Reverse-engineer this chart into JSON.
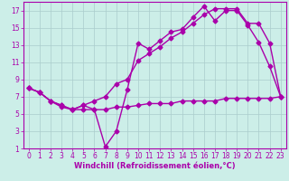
{
  "background_color": "#cceee8",
  "grid_color": "#aacccc",
  "line_color": "#aa00aa",
  "marker": "D",
  "marker_size": 2.5,
  "line_width": 1.0,
  "xlim": [
    -0.5,
    23.5
  ],
  "ylim": [
    1,
    18
  ],
  "xticks": [
    0,
    1,
    2,
    3,
    4,
    5,
    6,
    7,
    8,
    9,
    10,
    11,
    12,
    13,
    14,
    15,
    16,
    17,
    18,
    19,
    20,
    21,
    22,
    23
  ],
  "yticks": [
    1,
    3,
    5,
    7,
    9,
    11,
    13,
    15,
    17
  ],
  "xlabel": "Windchill (Refroidissement éolien,°C)",
  "series": [
    {
      "x": [
        0,
        1,
        2,
        3,
        4,
        5,
        6,
        7,
        8,
        9,
        10,
        11,
        12,
        13,
        14,
        15,
        16,
        17,
        18,
        19,
        20,
        21,
        22,
        23
      ],
      "y": [
        8,
        7.5,
        6.5,
        6.0,
        5.5,
        6.0,
        5.5,
        1.2,
        3.0,
        7.8,
        13.2,
        12.5,
        13.5,
        14.5,
        14.8,
        16.2,
        17.5,
        15.8,
        17.0,
        17.0,
        15.3,
        13.3,
        10.5,
        7.0
      ]
    },
    {
      "x": [
        0,
        1,
        2,
        3,
        4,
        5,
        6,
        7,
        8,
        9,
        10,
        11,
        12,
        13,
        14,
        15,
        16,
        17,
        18,
        19,
        20,
        21,
        22,
        23
      ],
      "y": [
        8,
        7.5,
        6.5,
        6.0,
        5.5,
        6.0,
        6.5,
        7.0,
        8.5,
        9.0,
        11.2,
        12.0,
        12.8,
        13.8,
        14.5,
        15.5,
        16.5,
        17.2,
        17.2,
        17.2,
        15.5,
        15.5,
        13.2,
        7.0
      ]
    },
    {
      "x": [
        0,
        1,
        2,
        3,
        4,
        5,
        6,
        7,
        8,
        9,
        10,
        11,
        12,
        13,
        14,
        15,
        16,
        17,
        18,
        19,
        20,
        21,
        22,
        23
      ],
      "y": [
        8,
        7.5,
        6.5,
        5.8,
        5.5,
        5.5,
        5.5,
        5.5,
        5.8,
        5.8,
        6.0,
        6.2,
        6.2,
        6.2,
        6.5,
        6.5,
        6.5,
        6.5,
        6.8,
        6.8,
        6.8,
        6.8,
        6.8,
        7.0
      ]
    }
  ],
  "tick_fontsize": 5.5,
  "xlabel_fontsize": 6.0
}
